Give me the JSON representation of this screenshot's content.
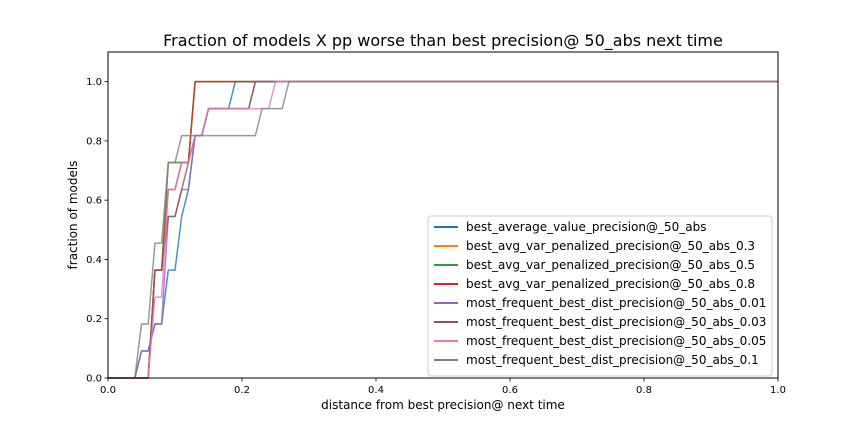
{
  "chart_data": {
    "type": "line",
    "title": "Fraction of models X pp worse than best precision@ 50_abs next time",
    "xlabel": "distance from best precision@ next time",
    "ylabel": "fraction of models",
    "xlim": [
      0.0,
      1.0
    ],
    "ylim": [
      0.0,
      1.1
    ],
    "xticks": [
      0.0,
      0.2,
      0.4,
      0.6,
      0.8,
      1.0
    ],
    "xtick_labels": [
      "0.0",
      "0.2",
      "0.4",
      "0.6",
      "0.8",
      "1.0"
    ],
    "yticks": [
      0.0,
      0.2,
      0.4,
      0.6,
      0.8,
      1.0
    ],
    "ytick_labels": [
      "0.0",
      "0.2",
      "0.4",
      "0.6",
      "0.8",
      "1.0"
    ],
    "grid": false,
    "legend_position": "lower-right",
    "series": [
      {
        "name": "best_average_value_precision@_50_abs",
        "color": "#1f77b4",
        "x": [
          0.0,
          0.04,
          0.05,
          0.06,
          0.07,
          0.08,
          0.09,
          0.1,
          0.11,
          0.12,
          0.13,
          0.14,
          0.15,
          0.16,
          0.17,
          0.18,
          0.19,
          1.0
        ],
        "y": [
          0.0,
          0.0,
          0.091,
          0.091,
          0.182,
          0.182,
          0.364,
          0.364,
          0.545,
          0.636,
          0.818,
          0.818,
          0.909,
          0.909,
          0.909,
          0.909,
          1.0,
          1.0
        ]
      },
      {
        "name": "best_avg_var_penalized_precision@_50_abs_0.3",
        "color": "#ff7f0e",
        "x": [
          0.0,
          0.06,
          0.07,
          0.08,
          0.09,
          0.1,
          0.11,
          0.12,
          0.13,
          1.0
        ],
        "y": [
          0.0,
          0.0,
          0.364,
          0.364,
          0.727,
          0.727,
          0.727,
          0.727,
          1.0,
          1.0
        ]
      },
      {
        "name": "best_avg_var_penalized_precision@_50_abs_0.5",
        "color": "#2ca02c",
        "x": [
          0.0,
          0.06,
          0.07,
          0.08,
          0.09,
          0.1,
          0.11,
          0.12,
          0.13,
          1.0
        ],
        "y": [
          0.0,
          0.0,
          0.364,
          0.364,
          0.727,
          0.727,
          0.727,
          0.727,
          1.0,
          1.0
        ]
      },
      {
        "name": "best_avg_var_penalized_precision@_50_abs_0.8",
        "color": "#d62728",
        "x": [
          0.0,
          0.06,
          0.07,
          0.08,
          0.09,
          0.1,
          0.11,
          0.12,
          0.13,
          1.0
        ],
        "y": [
          0.0,
          0.0,
          0.364,
          0.364,
          0.636,
          0.636,
          0.727,
          0.727,
          1.0,
          1.0
        ]
      },
      {
        "name": "most_frequent_best_dist_precision@_50_abs_0.01",
        "color": "#9467bd",
        "x": [
          0.0,
          0.04,
          0.05,
          0.06,
          0.07,
          0.08,
          0.09,
          0.1,
          0.11,
          0.12,
          0.13,
          0.14,
          0.15,
          0.16,
          0.17,
          0.18,
          0.19,
          0.2,
          0.21,
          0.22,
          1.0
        ],
        "y": [
          0.0,
          0.0,
          0.091,
          0.091,
          0.182,
          0.182,
          0.545,
          0.545,
          0.636,
          0.636,
          0.818,
          0.818,
          0.909,
          0.909,
          0.909,
          0.909,
          0.909,
          0.909,
          0.909,
          1.0,
          1.0
        ]
      },
      {
        "name": "most_frequent_best_dist_precision@_50_abs_0.03",
        "color": "#8c564b",
        "x": [
          0.0,
          0.06,
          0.07,
          0.08,
          0.09,
          0.1,
          0.11,
          0.12,
          0.13,
          0.14,
          0.15,
          0.16,
          0.17,
          0.18,
          0.19,
          0.2,
          0.21,
          0.22,
          1.0
        ],
        "y": [
          0.0,
          0.0,
          0.364,
          0.364,
          0.545,
          0.545,
          0.636,
          0.727,
          0.818,
          0.818,
          0.909,
          0.909,
          0.909,
          0.909,
          0.909,
          0.909,
          0.909,
          1.0,
          1.0
        ]
      },
      {
        "name": "most_frequent_best_dist_precision@_50_abs_0.05",
        "color": "#e377c2",
        "x": [
          0.0,
          0.06,
          0.07,
          0.08,
          0.09,
          0.1,
          0.11,
          0.12,
          0.13,
          0.14,
          0.15,
          0.16,
          0.17,
          0.18,
          0.19,
          0.2,
          0.21,
          0.22,
          0.23,
          0.24,
          0.25,
          1.0
        ],
        "y": [
          0.0,
          0.0,
          0.273,
          0.273,
          0.636,
          0.636,
          0.727,
          0.727,
          0.818,
          0.818,
          0.909,
          0.909,
          0.909,
          0.909,
          0.909,
          0.909,
          0.909,
          0.909,
          0.909,
          0.909,
          1.0,
          1.0
        ]
      },
      {
        "name": "most_frequent_best_dist_precision@_50_abs_0.1",
        "color": "#7f7f7f",
        "x": [
          0.0,
          0.04,
          0.05,
          0.06,
          0.07,
          0.08,
          0.09,
          0.1,
          0.11,
          0.12,
          0.13,
          0.14,
          0.15,
          0.16,
          0.17,
          0.18,
          0.19,
          0.2,
          0.21,
          0.22,
          0.23,
          0.24,
          0.25,
          0.26,
          0.27,
          1.0
        ],
        "y": [
          0.0,
          0.0,
          0.182,
          0.182,
          0.455,
          0.455,
          0.727,
          0.727,
          0.818,
          0.818,
          0.818,
          0.818,
          0.818,
          0.818,
          0.818,
          0.818,
          0.818,
          0.818,
          0.818,
          0.818,
          0.909,
          0.909,
          0.909,
          0.909,
          1.0,
          1.0
        ]
      }
    ]
  }
}
